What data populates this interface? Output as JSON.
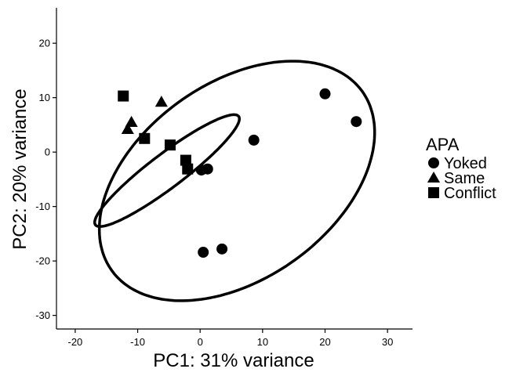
{
  "chart_data": {
    "type": "scatter",
    "xlabel": "PC1: 31% variance",
    "ylabel": "PC2: 20% variance",
    "xlim": [
      -23,
      34
    ],
    "ylim": [
      -32.5,
      26.5
    ],
    "xticks": [
      -20,
      -10,
      0,
      10,
      20,
      30
    ],
    "yticks": [
      -30,
      -20,
      -10,
      0,
      10,
      20
    ],
    "grid": false,
    "legend": {
      "title": "APA",
      "position": "right"
    },
    "series": [
      {
        "name": "Yoked",
        "marker": "circle",
        "points": [
          {
            "x": 20.0,
            "y": 10.7
          },
          {
            "x": 25.0,
            "y": 5.6
          },
          {
            "x": 8.6,
            "y": 2.2
          },
          {
            "x": 0.2,
            "y": -3.3
          },
          {
            "x": 1.2,
            "y": -3.1
          },
          {
            "x": 0.5,
            "y": -18.4
          },
          {
            "x": 3.5,
            "y": -17.8
          }
        ]
      },
      {
        "name": "Same",
        "marker": "triangle",
        "points": [
          {
            "x": -6.2,
            "y": 9.2
          },
          {
            "x": -11.0,
            "y": 5.5
          },
          {
            "x": -11.6,
            "y": 4.2
          }
        ]
      },
      {
        "name": "Conflict",
        "marker": "square",
        "points": [
          {
            "x": -12.3,
            "y": 10.3
          },
          {
            "x": -8.9,
            "y": 2.5
          },
          {
            "x": -4.8,
            "y": 1.3
          },
          {
            "x": -2.3,
            "y": -1.5
          },
          {
            "x": -2.0,
            "y": -3.1
          }
        ]
      }
    ],
    "ellipses": [
      {
        "center": [
          -5.3,
          -3.4
        ],
        "semi_axes": [
          15.2,
          2.95
        ],
        "angle_deg": 41.3
      },
      {
        "center": [
          5.9,
          -5.3
        ],
        "semi_axes": [
          26.1,
          17.0
        ],
        "angle_deg": 44.9
      }
    ]
  }
}
